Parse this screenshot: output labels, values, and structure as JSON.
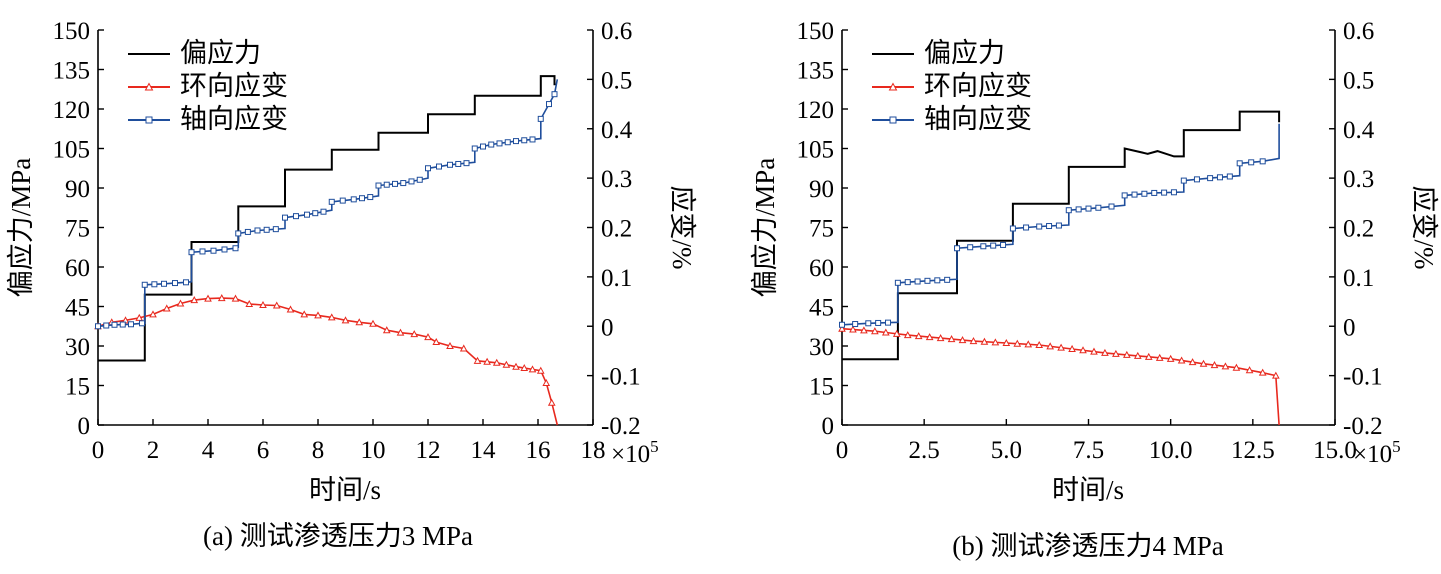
{
  "chart_data": [
    {
      "type": "line",
      "panel_caption": "(a) 测试渗透压力3 MPa",
      "xlabel": "时间/s",
      "x_multiplier": "×10",
      "x_multiplier_exp": "5",
      "ylabel_left": "偏应力/MPa",
      "ylabel_right": "应变/%",
      "xlim": [
        0,
        18
      ],
      "xticks": [
        0,
        2,
        4,
        6,
        8,
        10,
        12,
        14,
        16,
        18
      ],
      "ylim_left": [
        0,
        150
      ],
      "yticks_left": [
        0,
        15,
        30,
        45,
        60,
        75,
        90,
        105,
        120,
        135,
        150
      ],
      "ylim_right": [
        -0.2,
        0.6
      ],
      "yticks_right": [
        -0.2,
        -0.1,
        0,
        0.1,
        0.2,
        0.3,
        0.4,
        0.5,
        0.6
      ],
      "yticks_right_labels": [
        "-0.2",
        "-0.1",
        "0",
        "0.1",
        "0.2",
        "0.3",
        "0.4",
        "0.5",
        "0.6"
      ],
      "legend_position": "top-left",
      "series": [
        {
          "name": "偏应力",
          "axis": "left",
          "color": "#000000",
          "marker": "none",
          "points": [
            [
              0,
              24.5
            ],
            [
              1.7,
              24.5
            ],
            [
              1.7,
              49.5
            ],
            [
              3.4,
              49.5
            ],
            [
              3.4,
              69.5
            ],
            [
              5.1,
              69.5
            ],
            [
              5.1,
              83
            ],
            [
              6.8,
              83
            ],
            [
              6.8,
              97
            ],
            [
              8.5,
              97
            ],
            [
              8.5,
              104.5
            ],
            [
              10.2,
              104.5
            ],
            [
              10.2,
              111
            ],
            [
              12,
              111
            ],
            [
              12,
              118
            ],
            [
              13.7,
              118
            ],
            [
              13.7,
              125
            ],
            [
              16.1,
              125
            ],
            [
              16.1,
              132.5
            ],
            [
              16.6,
              132.5
            ],
            [
              16.6,
              129
            ]
          ]
        },
        {
          "name": "环向应变",
          "axis": "right",
          "color": "#e8291e",
          "marker": "triangle",
          "points": [
            [
              0,
              0
            ],
            [
              0.5,
              0.008
            ],
            [
              1,
              0.012
            ],
            [
              1.5,
              0.017
            ],
            [
              2,
              0.024
            ],
            [
              2.5,
              0.036
            ],
            [
              3,
              0.046
            ],
            [
              3.5,
              0.053
            ],
            [
              4,
              0.056
            ],
            [
              4.5,
              0.057
            ],
            [
              5,
              0.056
            ],
            [
              5.5,
              0.045
            ],
            [
              6,
              0.043
            ],
            [
              6.5,
              0.042
            ],
            [
              7,
              0.034
            ],
            [
              7.5,
              0.024
            ],
            [
              8,
              0.022
            ],
            [
              8.5,
              0.018
            ],
            [
              9,
              0.012
            ],
            [
              9.5,
              0.008
            ],
            [
              10,
              0.005
            ],
            [
              10.5,
              -0.008
            ],
            [
              11,
              -0.013
            ],
            [
              11.5,
              -0.016
            ],
            [
              12,
              -0.022
            ],
            [
              12.3,
              -0.032
            ],
            [
              12.8,
              -0.04
            ],
            [
              13.3,
              -0.045
            ],
            [
              13.8,
              -0.07
            ],
            [
              14.5,
              -0.074
            ],
            [
              15.2,
              -0.082
            ],
            [
              16.1,
              -0.09
            ],
            [
              16.3,
              -0.115
            ],
            [
              16.5,
              -0.155
            ],
            [
              16.7,
              -0.2
            ]
          ]
        },
        {
          "name": "轴向应变",
          "axis": "right",
          "color": "#1f4e9c",
          "marker": "square",
          "points": [
            [
              0,
              0
            ],
            [
              0.6,
              0.003
            ],
            [
              1.2,
              0.004
            ],
            [
              1.6,
              0.006
            ],
            [
              1.7,
              0.006
            ],
            [
              1.7,
              0.084
            ],
            [
              2.4,
              0.086
            ],
            [
              3.2,
              0.089
            ],
            [
              3.4,
              0.09
            ],
            [
              3.4,
              0.15
            ],
            [
              4.2,
              0.153
            ],
            [
              5,
              0.158
            ],
            [
              5.1,
              0.16
            ],
            [
              5.1,
              0.188
            ],
            [
              5.8,
              0.194
            ],
            [
              6.8,
              0.198
            ],
            [
              6.8,
              0.22
            ],
            [
              7.6,
              0.226
            ],
            [
              8.5,
              0.235
            ],
            [
              8.5,
              0.252
            ],
            [
              9.3,
              0.257
            ],
            [
              10.2,
              0.264
            ],
            [
              10.2,
              0.285
            ],
            [
              11.1,
              0.29
            ],
            [
              12,
              0.3
            ],
            [
              12,
              0.32
            ],
            [
              12.8,
              0.327
            ],
            [
              13.7,
              0.332
            ],
            [
              13.7,
              0.36
            ],
            [
              14.3,
              0.368
            ],
            [
              15.2,
              0.375
            ],
            [
              16.1,
              0.38
            ],
            [
              16.1,
              0.42
            ],
            [
              16.4,
              0.45
            ],
            [
              16.6,
              0.47
            ],
            [
              16.7,
              0.5
            ]
          ]
        }
      ]
    },
    {
      "type": "line",
      "panel_caption": "(b) 测试渗透压力4 MPa",
      "xlabel": "时间/s",
      "x_multiplier": "×10",
      "x_multiplier_exp": "5",
      "ylabel_left": "偏应力/MPa",
      "ylabel_right": "应变/%",
      "xlim": [
        0,
        15
      ],
      "xticks": [
        0,
        2.5,
        5,
        7.5,
        10,
        12.5,
        15
      ],
      "xticks_labels": [
        "0",
        "2.5",
        "5.0",
        "7.5",
        "10.0",
        "12.5",
        "15.0"
      ],
      "ylim_left": [
        0,
        150
      ],
      "yticks_left": [
        0,
        15,
        30,
        45,
        60,
        75,
        90,
        105,
        120,
        135,
        150
      ],
      "ylim_right": [
        -0.2,
        0.6
      ],
      "yticks_right": [
        -0.2,
        -0.1,
        0,
        0.1,
        0.2,
        0.3,
        0.4,
        0.5,
        0.6
      ],
      "yticks_right_labels": [
        "-0.2",
        "-0.1",
        "0",
        "0.1",
        "0.2",
        "0.3",
        "0.4",
        "0.5",
        "0.6"
      ],
      "legend_position": "top-left",
      "series": [
        {
          "name": "偏应力",
          "axis": "left",
          "color": "#000000",
          "marker": "none",
          "points": [
            [
              0,
              25
            ],
            [
              1.7,
              25
            ],
            [
              1.7,
              50
            ],
            [
              3.5,
              50
            ],
            [
              3.5,
              70
            ],
            [
              5.2,
              70
            ],
            [
              5.2,
              84
            ],
            [
              6.9,
              84
            ],
            [
              6.9,
              98
            ],
            [
              8.6,
              98
            ],
            [
              8.6,
              105
            ],
            [
              9.3,
              103
            ],
            [
              9.6,
              104
            ],
            [
              10.1,
              102
            ],
            [
              10.4,
              102
            ],
            [
              10.4,
              112
            ],
            [
              12.1,
              112
            ],
            [
              12.1,
              119
            ],
            [
              13.3,
              119
            ],
            [
              13.3,
              115
            ]
          ]
        },
        {
          "name": "环向应变",
          "axis": "right",
          "color": "#e8291e",
          "marker": "triangle",
          "points": [
            [
              0,
              -0.005
            ],
            [
              1,
              -0.01
            ],
            [
              2,
              -0.018
            ],
            [
              3,
              -0.024
            ],
            [
              4,
              -0.03
            ],
            [
              5,
              -0.034
            ],
            [
              6,
              -0.038
            ],
            [
              7,
              -0.046
            ],
            [
              8,
              -0.054
            ],
            [
              9,
              -0.06
            ],
            [
              10,
              -0.066
            ],
            [
              11,
              -0.076
            ],
            [
              12,
              -0.084
            ],
            [
              12.8,
              -0.094
            ],
            [
              13.2,
              -0.1
            ],
            [
              13.3,
              -0.2
            ]
          ]
        },
        {
          "name": "轴向应变",
          "axis": "right",
          "color": "#1f4e9c",
          "marker": "square",
          "points": [
            [
              0,
              0.003
            ],
            [
              0.8,
              0.006
            ],
            [
              1.7,
              0.008
            ],
            [
              1.7,
              0.088
            ],
            [
              2.6,
              0.092
            ],
            [
              3.5,
              0.095
            ],
            [
              3.5,
              0.158
            ],
            [
              4.3,
              0.162
            ],
            [
              5.2,
              0.166
            ],
            [
              5.2,
              0.198
            ],
            [
              6,
              0.202
            ],
            [
              6.9,
              0.205
            ],
            [
              6.9,
              0.235
            ],
            [
              7.8,
              0.24
            ],
            [
              8.6,
              0.245
            ],
            [
              8.6,
              0.265
            ],
            [
              9.5,
              0.27
            ],
            [
              10.4,
              0.272
            ],
            [
              10.4,
              0.295
            ],
            [
              11.2,
              0.3
            ],
            [
              12.1,
              0.305
            ],
            [
              12.1,
              0.33
            ],
            [
              12.8,
              0.334
            ],
            [
              13.3,
              0.34
            ],
            [
              13.3,
              0.41
            ]
          ]
        }
      ]
    }
  ]
}
